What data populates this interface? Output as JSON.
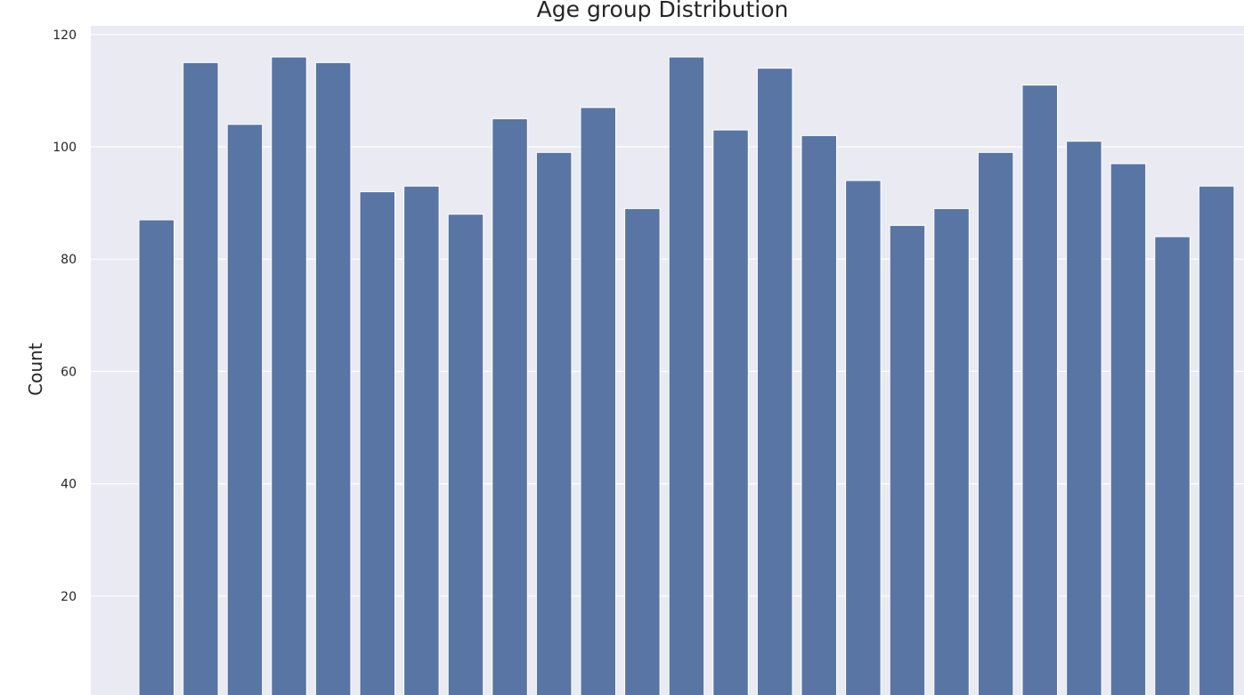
{
  "chart_data": {
    "type": "bar",
    "title": "Age group Distribution",
    "xlabel": "",
    "ylabel": "Count",
    "values": [
      87,
      115,
      104,
      116,
      115,
      92,
      93,
      88,
      105,
      99,
      107,
      89,
      116,
      103,
      114,
      102,
      94,
      86,
      89,
      99,
      111,
      101,
      97,
      84,
      93
    ],
    "ylim": [
      0,
      122
    ],
    "yticks": [
      20,
      40,
      60,
      80,
      100,
      120
    ],
    "ytick_labels": [
      "20",
      "40",
      "60",
      "80",
      "100",
      "120"
    ],
    "grid": true,
    "colors": {
      "bar": "#5975a4",
      "plot_background": "#eaeaf2",
      "grid": "#ffffff",
      "text": "#262626"
    }
  }
}
